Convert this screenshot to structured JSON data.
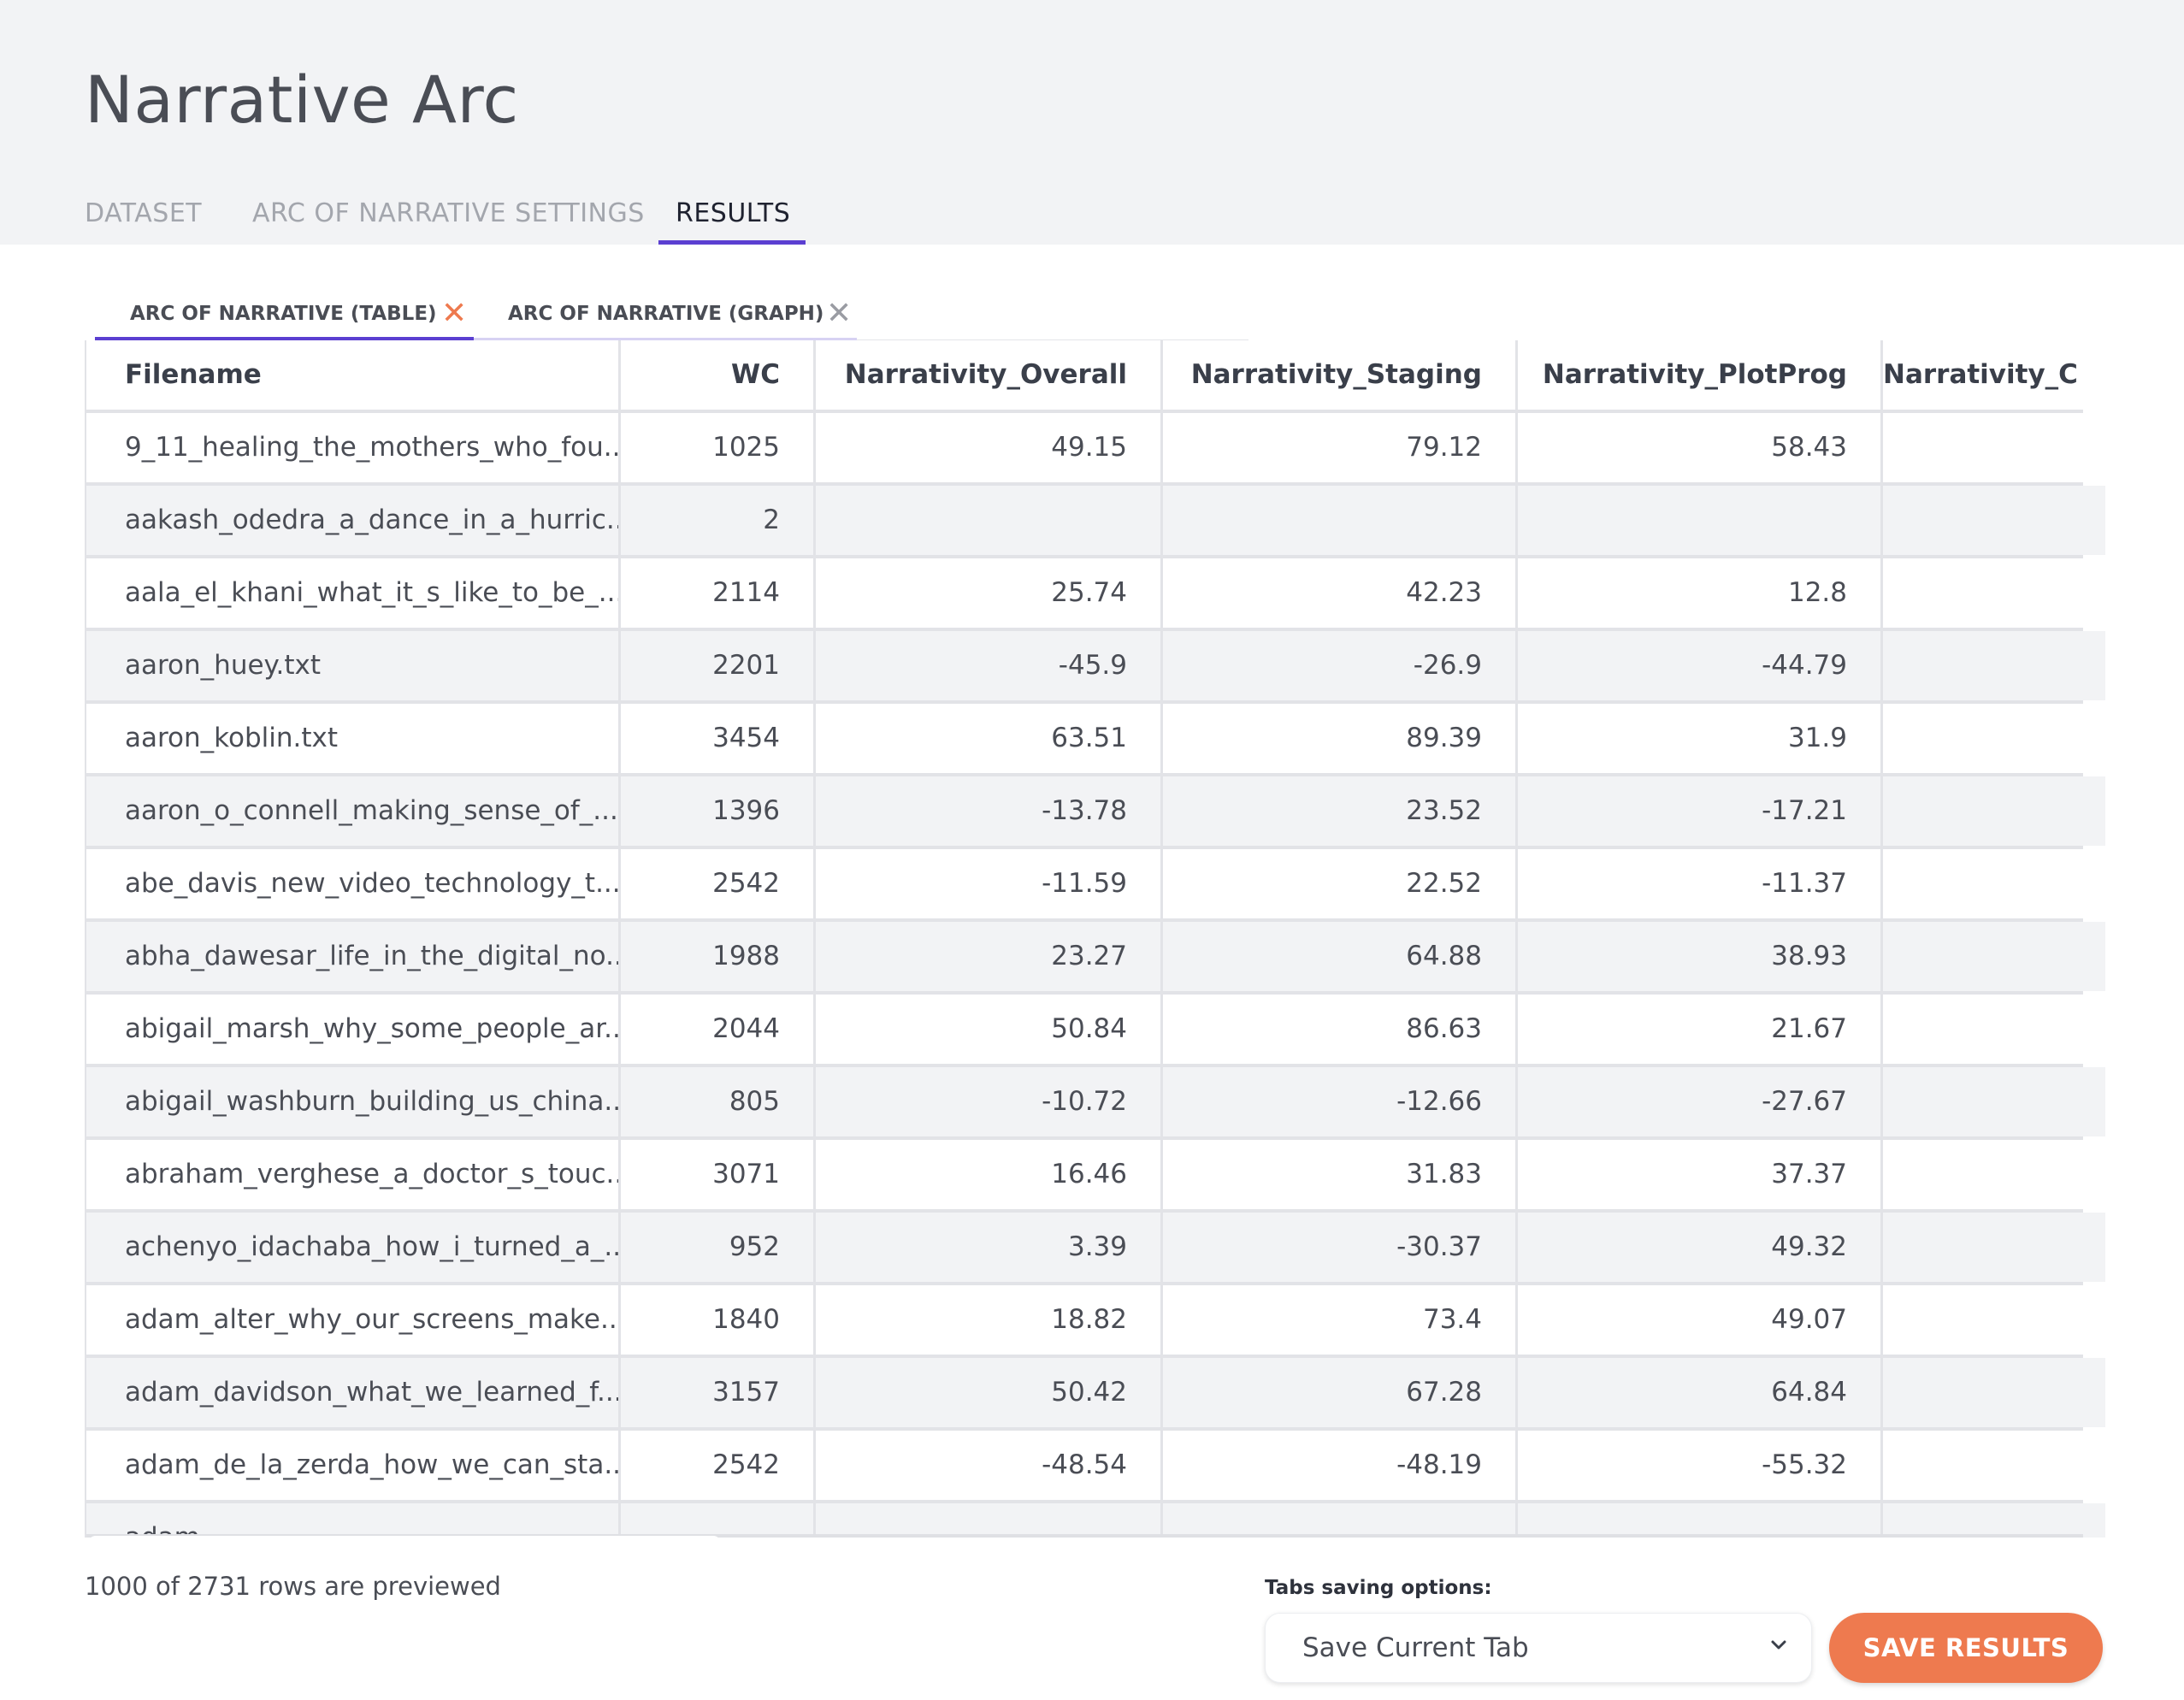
{
  "app": {
    "title": "Narrative Arc"
  },
  "main_tabs": [
    {
      "label": "DATASET"
    },
    {
      "label": "ARC OF NARRATIVE SETTINGS"
    },
    {
      "label": "RESULTS"
    }
  ],
  "sub_tabs": [
    {
      "label": "ARC OF NARRATIVE (TABLE)",
      "close": "✕"
    },
    {
      "label": "ARC OF NARRATIVE (GRAPH)",
      "close": "✕"
    }
  ],
  "colors": {
    "accent": "#5b3fd1",
    "close_active": "#ee7a4f",
    "save_button": "#ee7a4f"
  },
  "table": {
    "columns": [
      "Filename",
      "WC",
      "Narrativity_Overall",
      "Narrativity_Staging",
      "Narrativity_PlotProg",
      "Narrativity_C"
    ],
    "rows": [
      [
        "9_11_healing_the_mothers_who_fou...",
        "1025",
        "49.15",
        "79.12",
        "58.43",
        ""
      ],
      [
        "aakash_odedra_a_dance_in_a_hurric...",
        "2",
        "",
        "",
        "",
        ""
      ],
      [
        "aala_el_khani_what_it_s_like_to_be_...",
        "2114",
        "25.74",
        "42.23",
        "12.8",
        ""
      ],
      [
        "aaron_huey.txt",
        "2201",
        "-45.9",
        "-26.9",
        "-44.79",
        ""
      ],
      [
        "aaron_koblin.txt",
        "3454",
        "63.51",
        "89.39",
        "31.9",
        ""
      ],
      [
        "aaron_o_connell_making_sense_of_...",
        "1396",
        "-13.78",
        "23.52",
        "-17.21",
        ""
      ],
      [
        "abe_davis_new_video_technology_t...",
        "2542",
        "-11.59",
        "22.52",
        "-11.37",
        ""
      ],
      [
        "abha_dawesar_life_in_the_digital_no...",
        "1988",
        "23.27",
        "64.88",
        "38.93",
        ""
      ],
      [
        "abigail_marsh_why_some_people_ar...",
        "2044",
        "50.84",
        "86.63",
        "21.67",
        ""
      ],
      [
        "abigail_washburn_building_us_china...",
        "805",
        "-10.72",
        "-12.66",
        "-27.67",
        ""
      ],
      [
        "abraham_verghese_a_doctor_s_touc...",
        "3071",
        "16.46",
        "31.83",
        "37.37",
        ""
      ],
      [
        "achenyo_idachaba_how_i_turned_a_...",
        "952",
        "3.39",
        "-30.37",
        "49.32",
        ""
      ],
      [
        "adam_alter_why_our_screens_make...",
        "1840",
        "18.82",
        "73.4",
        "49.07",
        ""
      ],
      [
        "adam_davidson_what_we_learned_f...",
        "3157",
        "50.42",
        "67.28",
        "64.84",
        ""
      ],
      [
        "adam_de_la_zerda_how_we_can_sta...",
        "2542",
        "-48.54",
        "-48.19",
        "-55.32",
        ""
      ],
      [
        "adam_...",
        "",
        "",
        "",
        "",
        ""
      ]
    ]
  },
  "footer": {
    "preview_note": "1000 of 2731 rows are previewed",
    "save_options_label": "Tabs saving options:",
    "save_option_selected": "Save Current Tab",
    "save_button": "SAVE RESULTS"
  }
}
